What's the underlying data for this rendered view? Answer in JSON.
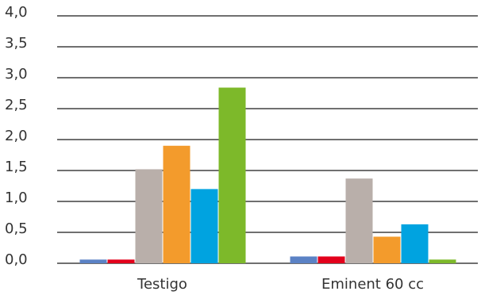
{
  "chart_data": {
    "type": "bar",
    "title": "",
    "xlabel": "",
    "ylabel": "",
    "ylim": [
      0,
      4.0
    ],
    "y_ticks": [
      "0,0",
      "0,5",
      "1,0",
      "1,5",
      "2,0",
      "2,5",
      "3,0",
      "3,5",
      "4,0"
    ],
    "grid": true,
    "legend": "none",
    "categories": [
      "Testigo",
      "Eminent 60 cc"
    ],
    "series": [
      {
        "color": "#5B82C5",
        "values": [
          0.06,
          0.11
        ]
      },
      {
        "color": "#E3001B",
        "values": [
          0.06,
          0.11
        ]
      },
      {
        "color": "#B9AFAA",
        "values": [
          1.52,
          1.37
        ]
      },
      {
        "color": "#F39B2C",
        "values": [
          1.9,
          0.43
        ]
      },
      {
        "color": "#00A3E0",
        "values": [
          1.2,
          0.63
        ]
      },
      {
        "color": "#7DB92A",
        "values": [
          2.84,
          0.06
        ]
      }
    ]
  }
}
